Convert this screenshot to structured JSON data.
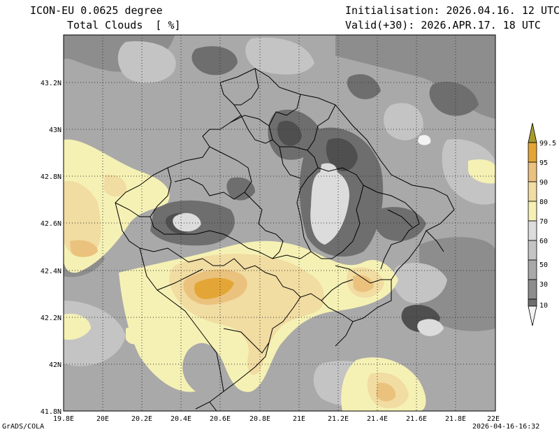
{
  "header": {
    "model": "ICON-EU 0.0625 degree",
    "variable": "Total Clouds  [ %]",
    "init": "Initialisation: 2026.04.16. 12 UTC",
    "valid": "Valid(+30): 2026.APR.17. 18 UTC"
  },
  "axes": {
    "x_ticks": [
      "19.8E",
      "20E",
      "20.2E",
      "20.4E",
      "20.6E",
      "20.8E",
      "21E",
      "21.2E",
      "21.4E",
      "21.6E",
      "21.8E",
      "22E"
    ],
    "y_ticks": [
      "43.2N",
      "43N",
      "42.8N",
      "42.6N",
      "42.4N",
      "42.2N",
      "42N",
      "41.8N"
    ],
    "x_range": [
      19.8,
      22.0
    ],
    "y_range": [
      41.8,
      43.4
    ],
    "grid": true
  },
  "colorbar": {
    "labels": [
      "99.5",
      "95",
      "90",
      "80",
      "70",
      "60",
      "50",
      "30",
      "10"
    ],
    "colors": [
      "#4f4f4f",
      "#6e6e6e",
      "#8d8d8d",
      "#a9a9a9",
      "#c4c4c4",
      "#dcdcdc",
      "#f5f1b4",
      "#f1dca2",
      "#ebc27d",
      "#e3a636",
      "#a89a2d"
    ]
  },
  "footer": {
    "left": "GrADS/COLA",
    "right": "2026-04-16-16:32"
  }
}
